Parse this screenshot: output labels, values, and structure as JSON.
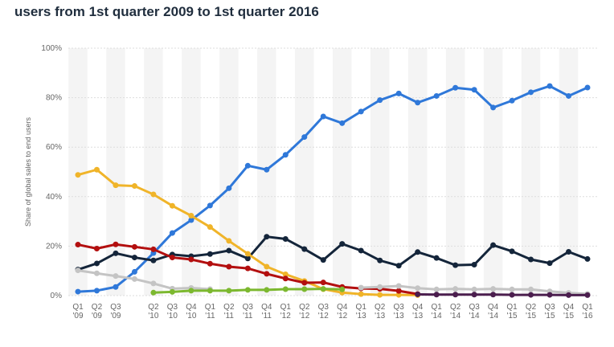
{
  "chart_data": {
    "type": "line",
    "title": "users from 1st quarter 2009 to 1st quarter 2016",
    "y_label": "Share of global sales to end users",
    "categories": [
      "Q1 '09",
      "Q2 '09",
      "Q3 '09",
      null,
      "Q2 '10",
      "Q3 '10",
      "Q4 '10",
      "Q1 '11",
      "Q2 '11",
      "Q3 '11",
      "Q4 '11",
      "Q1 '12",
      "Q2 '12",
      "Q3 '12",
      "Q4 '12",
      "Q1 '13",
      "Q2 '13",
      "Q3 '13",
      "Q4 '13",
      "Q1 '14",
      "Q2 '14",
      "Q3 '14",
      "Q4 '14",
      "Q1 '15",
      "Q2 '15",
      "Q3 '15",
      "Q4 '15",
      "Q1 '16"
    ],
    "ylim": [
      0,
      100
    ],
    "yticks": [
      {
        "value": 0,
        "label": "0%"
      },
      {
        "value": 20,
        "label": "20%"
      },
      {
        "value": 40,
        "label": "40%"
      },
      {
        "value": 60,
        "label": "60%"
      },
      {
        "value": 80,
        "label": "80%"
      },
      {
        "value": 100,
        "label": "100%"
      }
    ],
    "grid": true,
    "series": [
      {
        "color": "#2f78d9",
        "values": [
          1.6,
          2,
          3.5,
          9.6,
          17.2,
          25.3,
          30.5,
          36.4,
          43.4,
          52.5,
          50.9,
          56.9,
          64.1,
          72.4,
          69.7,
          74.4,
          79,
          81.7,
          78,
          80.7,
          84,
          83.2,
          76,
          78.8,
          82.2,
          84.7,
          80.7,
          84.1
        ]
      },
      {
        "color": "#14253a",
        "values": [
          10.5,
          13,
          17.1,
          15.4,
          14.2,
          16.6,
          15.9,
          16.8,
          18.2,
          15,
          23.8,
          22.9,
          18.8,
          14.4,
          20.9,
          18.2,
          14.2,
          12.1,
          17.6,
          15.2,
          12.3,
          12.5,
          20.4,
          17.9,
          14.6,
          13.1,
          17.7,
          14.8
        ]
      },
      {
        "color": "#f0b429",
        "values": [
          48.8,
          50.9,
          44.6,
          44.3,
          40.9,
          36.3,
          32.3,
          27.7,
          22.1,
          16.9,
          11.7,
          8.6,
          5.9,
          2.6,
          1.2,
          0.6,
          0.3,
          0.3,
          0.2,
          null,
          null,
          null,
          null,
          null,
          null,
          null,
          null,
          null
        ]
      },
      {
        "color": "#b30f0f",
        "values": [
          20.6,
          19,
          20.7,
          19.7,
          18.7,
          15.4,
          14.6,
          12.9,
          11.7,
          11,
          8.8,
          6.9,
          5.2,
          5.3,
          3.5,
          2.9,
          2.7,
          1.9,
          0.6,
          null,
          null,
          null,
          null,
          null,
          null,
          null,
          null,
          null
        ]
      },
      {
        "color": "#c4c4c4",
        "values": [
          10.2,
          9,
          7.9,
          6.7,
          4.9,
          2.8,
          3.1,
          2.6,
          null,
          null,
          null,
          null,
          null,
          null,
          null,
          3.2,
          3.5,
          3.9,
          3,
          2.5,
          2.7,
          2.5,
          2.7,
          2.5,
          2.5,
          1.7,
          1.1,
          0.7
        ]
      },
      {
        "color": "#7cb82f",
        "values": [
          null,
          null,
          null,
          null,
          1.2,
          1.5,
          2,
          2,
          2,
          2.3,
          2.3,
          2.6,
          2.6,
          2.7,
          2.5,
          null,
          null,
          null,
          null,
          null,
          null,
          null,
          null,
          null,
          null,
          null,
          null,
          null
        ]
      },
      {
        "color": "#4b1e4e",
        "values": [
          null,
          null,
          null,
          null,
          null,
          null,
          null,
          null,
          null,
          null,
          null,
          null,
          null,
          null,
          null,
          null,
          null,
          null,
          0.5,
          0.4,
          0.4,
          0.4,
          0.4,
          0.3,
          0.3,
          0.3,
          0.2,
          0.2
        ]
      }
    ]
  }
}
